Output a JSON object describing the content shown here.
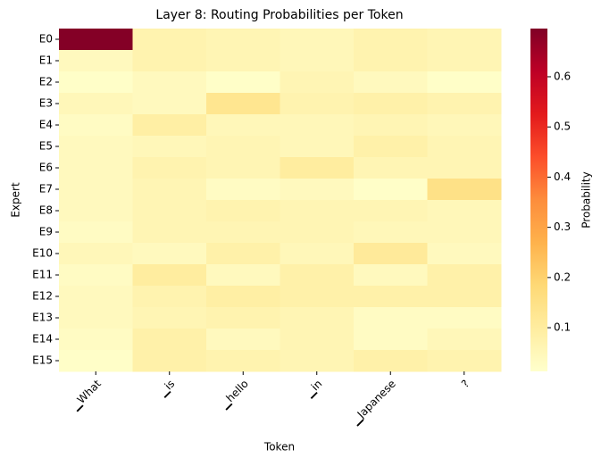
{
  "chart_data": {
    "type": "heatmap",
    "title": "Layer 8: Routing Probabilities per Token",
    "x_label": "Token",
    "y_label": "Expert",
    "x_categories": [
      "▁What",
      "▁is",
      "▁hello",
      "▁in",
      "▁Japanese",
      "?"
    ],
    "y_categories": [
      "E0",
      "E1",
      "E2",
      "E3",
      "E4",
      "E5",
      "E6",
      "E7",
      "E8",
      "E9",
      "E10",
      "E11",
      "E12",
      "E13",
      "E14",
      "E15"
    ],
    "values": [
      [
        0.69,
        0.07,
        0.06,
        0.05,
        0.07,
        0.06
      ],
      [
        0.04,
        0.07,
        0.06,
        0.05,
        0.07,
        0.06
      ],
      [
        0.02,
        0.04,
        0.02,
        0.06,
        0.04,
        0.02
      ],
      [
        0.05,
        0.04,
        0.13,
        0.07,
        0.08,
        0.07
      ],
      [
        0.03,
        0.09,
        0.05,
        0.05,
        0.06,
        0.05
      ],
      [
        0.04,
        0.05,
        0.06,
        0.05,
        0.08,
        0.06
      ],
      [
        0.04,
        0.07,
        0.06,
        0.1,
        0.06,
        0.06
      ],
      [
        0.04,
        0.06,
        0.03,
        0.04,
        0.02,
        0.15
      ],
      [
        0.04,
        0.06,
        0.07,
        0.06,
        0.06,
        0.05
      ],
      [
        0.03,
        0.06,
        0.06,
        0.06,
        0.05,
        0.05
      ],
      [
        0.05,
        0.04,
        0.08,
        0.05,
        0.11,
        0.04
      ],
      [
        0.03,
        0.1,
        0.04,
        0.08,
        0.04,
        0.08
      ],
      [
        0.04,
        0.07,
        0.09,
        0.08,
        0.08,
        0.08
      ],
      [
        0.04,
        0.06,
        0.07,
        0.06,
        0.03,
        0.03
      ],
      [
        0.03,
        0.08,
        0.04,
        0.06,
        0.03,
        0.05
      ],
      [
        0.02,
        0.08,
        0.07,
        0.06,
        0.08,
        0.07
      ]
    ],
    "colorscale": [
      "#ffffcc",
      "#ffeda0",
      "#fed976",
      "#feb24c",
      "#fd8d3c",
      "#fc4e2a",
      "#e31a1c",
      "#bd0026",
      "#800026"
    ],
    "colorbar_label": "Probability",
    "clim": [
      0.013,
      0.696
    ],
    "cticks": [
      0.1,
      0.2,
      0.3,
      0.4,
      0.5,
      0.6
    ]
  }
}
